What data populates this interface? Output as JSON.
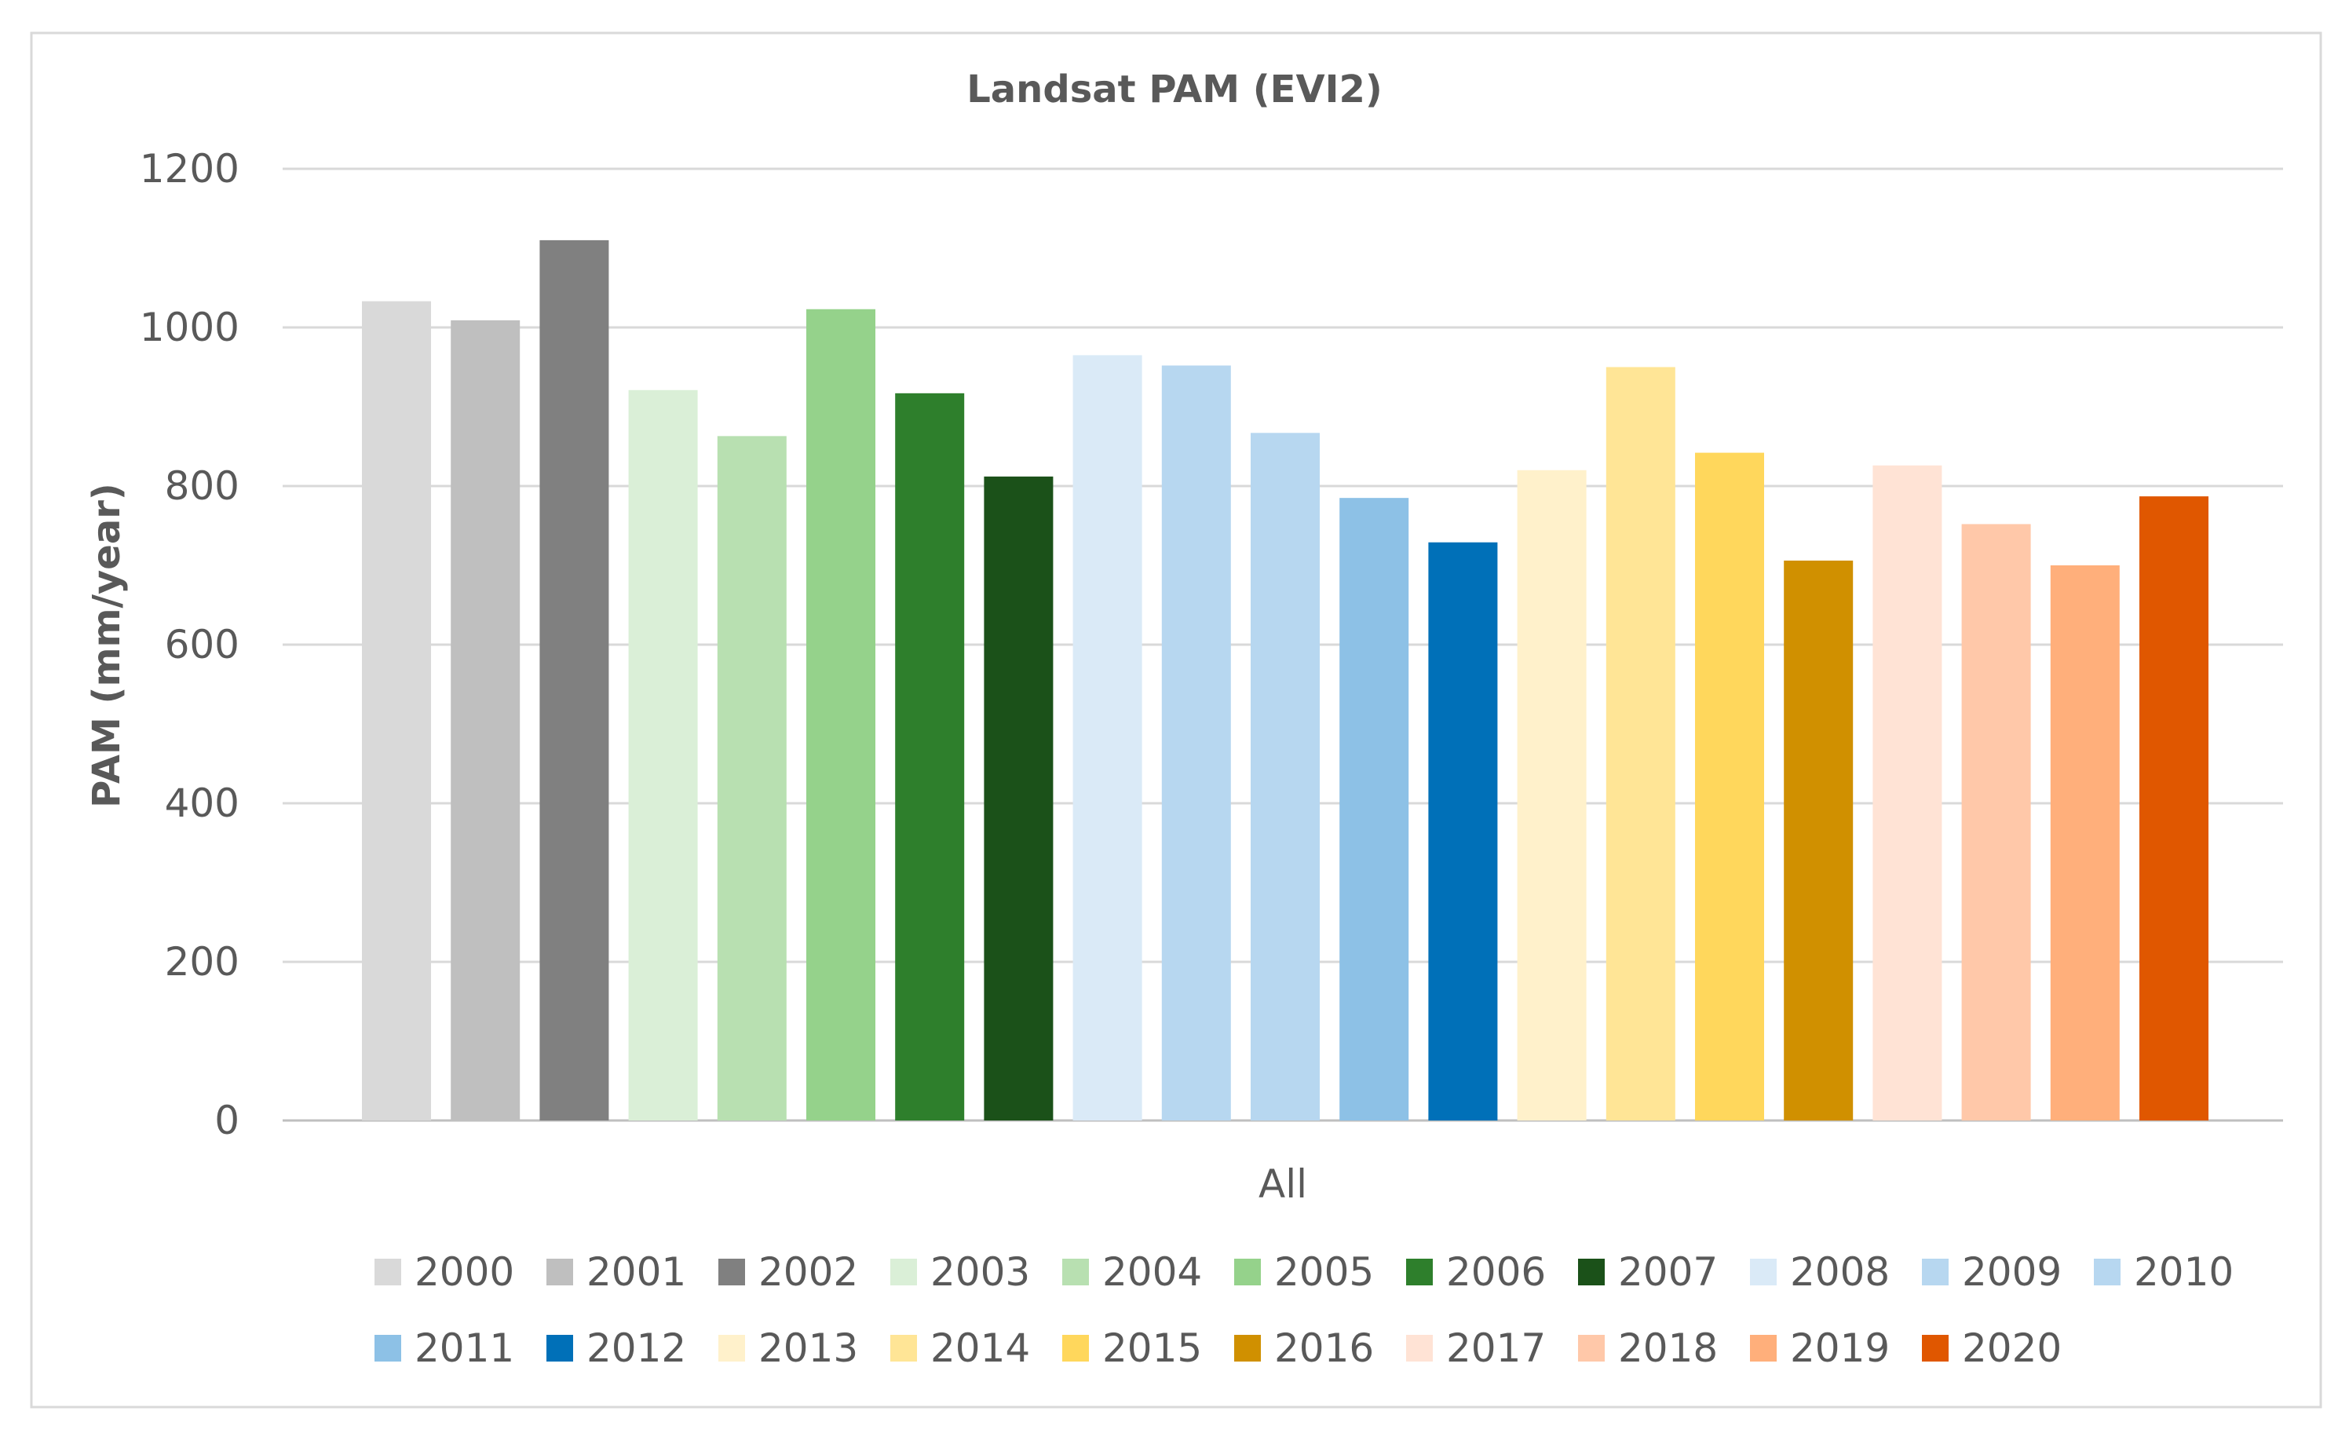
{
  "chart_data": {
    "type": "bar",
    "title": "Landsat PAM (EVI2)",
    "xlabel": "",
    "ylabel": "PAM (mm/year)",
    "ylim": [
      0,
      1200
    ],
    "yticks": [
      0,
      200,
      400,
      600,
      800,
      1000,
      1200
    ],
    "categories": [
      "All"
    ],
    "grid": true,
    "legend_position": "bottom",
    "series": [
      {
        "name": "2000",
        "values": [
          1033
        ],
        "color": "#D9D9D9"
      },
      {
        "name": "2001",
        "values": [
          1009
        ],
        "color": "#BFBFBF"
      },
      {
        "name": "2002",
        "values": [
          1110
        ],
        "color": "#808080"
      },
      {
        "name": "2003",
        "values": [
          921
        ],
        "color": "#DAEFD7"
      },
      {
        "name": "2004",
        "values": [
          863
        ],
        "color": "#B8E0B1"
      },
      {
        "name": "2005",
        "values": [
          1023
        ],
        "color": "#95D28B"
      },
      {
        "name": "2006",
        "values": [
          917
        ],
        "color": "#2E7F2C"
      },
      {
        "name": "2007",
        "values": [
          812
        ],
        "color": "#1B5119"
      },
      {
        "name": "2008",
        "values": [
          965
        ],
        "color": "#DAEAF7"
      },
      {
        "name": "2009",
        "values": [
          952
        ],
        "color": "#B7D7F0"
      },
      {
        "name": "2010",
        "values": [
          867
        ],
        "color": "#B7D7F0"
      },
      {
        "name": "2011",
        "values": [
          785
        ],
        "color": "#8DC1E6"
      },
      {
        "name": "2012",
        "values": [
          729
        ],
        "color": "#0070B8"
      },
      {
        "name": "2013",
        "values": [
          820
        ],
        "color": "#FFF1CB"
      },
      {
        "name": "2014",
        "values": [
          950
        ],
        "color": "#FFE596"
      },
      {
        "name": "2015",
        "values": [
          842
        ],
        "color": "#FFD75C"
      },
      {
        "name": "2016",
        "values": [
          706
        ],
        "color": "#D09000"
      },
      {
        "name": "2017",
        "values": [
          826
        ],
        "color": "#FFE3D5"
      },
      {
        "name": "2018",
        "values": [
          752
        ],
        "color": "#FFC8A9"
      },
      {
        "name": "2019",
        "values": [
          700
        ],
        "color": "#FFAF7B"
      },
      {
        "name": "2020",
        "values": [
          787
        ],
        "color": "#E05700"
      }
    ]
  }
}
